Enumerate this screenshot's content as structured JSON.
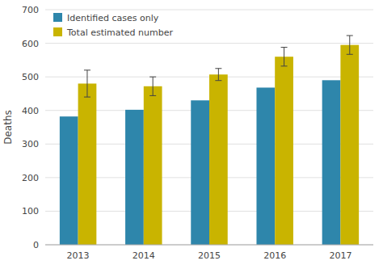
{
  "chart_data": {
    "type": "bar",
    "categories": [
      "2013",
      "2014",
      "2015",
      "2016",
      "2017"
    ],
    "series": [
      {
        "name": "Identified cases only",
        "color": "#2e86ab",
        "values": [
          382,
          402,
          430,
          468,
          490
        ]
      },
      {
        "name": "Total estimated number",
        "color": "#c9b400",
        "values": [
          480,
          472,
          507,
          560,
          595
        ],
        "errors_lower": [
          40,
          28,
          18,
          28,
          28
        ],
        "errors_upper": [
          40,
          28,
          18,
          28,
          28
        ]
      }
    ],
    "ylabel": "Deaths",
    "ylim": [
      0,
      700
    ],
    "yticks": [
      0,
      100,
      200,
      300,
      400,
      500,
      600,
      700
    ],
    "grid": true,
    "legend": "upper left"
  }
}
